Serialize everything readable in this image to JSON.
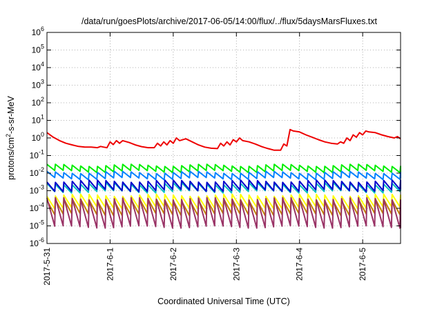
{
  "chart_data": {
    "type": "line",
    "title": "/data/run/goesPlots/archive/2017-06-05/14:00/flux/../flux/5daysMarsFluxes.txt",
    "xlabel": "Coordinated Universal Time (UTC)",
    "ylabel": {
      "base": "protons/cm",
      "sup": "2",
      "rest": "-s-sr-MeV"
    },
    "y_scale": "log",
    "ylim_exponents": [
      -6,
      6
    ],
    "y_tick_base": "10",
    "y_tick_exponents": [
      "-6",
      "-5",
      "-4",
      "-3",
      "-2",
      "-1",
      "0",
      "1",
      "2",
      "3",
      "4",
      "5",
      "6"
    ],
    "x_range_days": [
      0,
      5.6
    ],
    "x_ticks": [
      {
        "day": 0,
        "label": "2017-5-31"
      },
      {
        "day": 1,
        "label": "2017-6-1"
      },
      {
        "day": 2,
        "label": "2017-6-2"
      },
      {
        "day": 3,
        "label": "2017-6-3"
      },
      {
        "day": 4,
        "label": "2017-6-4"
      },
      {
        "day": 5,
        "label": "2017-6-5"
      }
    ],
    "grid": true,
    "series": [
      {
        "color": "#ee0000",
        "points": [
          [
            0.0,
            2.0
          ],
          [
            0.1,
            1.1
          ],
          [
            0.2,
            0.7
          ],
          [
            0.3,
            0.5
          ],
          [
            0.4,
            0.4
          ],
          [
            0.5,
            0.33
          ],
          [
            0.6,
            0.3
          ],
          [
            0.7,
            0.3
          ],
          [
            0.8,
            0.28
          ],
          [
            0.85,
            0.33
          ],
          [
            0.9,
            0.3
          ],
          [
            0.95,
            0.28
          ],
          [
            1.0,
            0.6
          ],
          [
            1.05,
            0.42
          ],
          [
            1.1,
            0.7
          ],
          [
            1.15,
            0.5
          ],
          [
            1.2,
            0.7
          ],
          [
            1.3,
            0.55
          ],
          [
            1.4,
            0.4
          ],
          [
            1.5,
            0.32
          ],
          [
            1.6,
            0.28
          ],
          [
            1.7,
            0.28
          ],
          [
            1.75,
            0.5
          ],
          [
            1.8,
            0.35
          ],
          [
            1.85,
            0.6
          ],
          [
            1.9,
            0.4
          ],
          [
            1.95,
            0.7
          ],
          [
            2.0,
            0.5
          ],
          [
            2.05,
            1.0
          ],
          [
            2.1,
            0.7
          ],
          [
            2.2,
            0.9
          ],
          [
            2.3,
            0.6
          ],
          [
            2.4,
            0.4
          ],
          [
            2.5,
            0.3
          ],
          [
            2.6,
            0.26
          ],
          [
            2.7,
            0.25
          ],
          [
            2.75,
            0.5
          ],
          [
            2.8,
            0.35
          ],
          [
            2.85,
            0.6
          ],
          [
            2.9,
            0.4
          ],
          [
            2.95,
            0.8
          ],
          [
            3.0,
            0.6
          ],
          [
            3.05,
            1.0
          ],
          [
            3.1,
            0.7
          ],
          [
            3.2,
            0.6
          ],
          [
            3.3,
            0.45
          ],
          [
            3.4,
            0.32
          ],
          [
            3.5,
            0.25
          ],
          [
            3.6,
            0.2
          ],
          [
            3.7,
            0.2
          ],
          [
            3.75,
            0.45
          ],
          [
            3.8,
            0.35
          ],
          [
            3.85,
            3.0
          ],
          [
            3.9,
            2.5
          ],
          [
            4.0,
            2.2
          ],
          [
            4.1,
            1.5
          ],
          [
            4.2,
            1.1
          ],
          [
            4.3,
            0.8
          ],
          [
            4.4,
            0.6
          ],
          [
            4.5,
            0.5
          ],
          [
            4.6,
            0.45
          ],
          [
            4.65,
            0.6
          ],
          [
            4.7,
            0.5
          ],
          [
            4.75,
            1.0
          ],
          [
            4.8,
            0.7
          ],
          [
            4.85,
            1.5
          ],
          [
            4.9,
            1.1
          ],
          [
            4.95,
            2.0
          ],
          [
            5.0,
            1.5
          ],
          [
            5.05,
            2.5
          ],
          [
            5.1,
            2.2
          ],
          [
            5.2,
            2.0
          ],
          [
            5.3,
            1.5
          ],
          [
            5.4,
            1.2
          ],
          [
            5.5,
            1.0
          ],
          [
            5.55,
            1.2
          ],
          [
            5.6,
            0.9
          ]
        ]
      },
      {
        "color": "#00ee00",
        "base": 0.028,
        "dip": 0.45
      },
      {
        "color": "#0080ff",
        "base": 0.011,
        "dip": 0.45
      },
      {
        "color": "#00c0c0",
        "base": 0.0025,
        "dip": 0.35
      },
      {
        "color": "#0000cc",
        "base": 0.0035,
        "dip": 0.3
      },
      {
        "color": "#ffff00",
        "base": 0.00055,
        "dip": 0.2
      },
      {
        "color": "#c08000",
        "base": 0.0003,
        "dip": 0.15
      },
      {
        "color": "#993366",
        "base": 0.00035,
        "dip": 0.025
      }
    ],
    "cycles_per_day": 7.5,
    "cycles_per_day_red": 0
  }
}
